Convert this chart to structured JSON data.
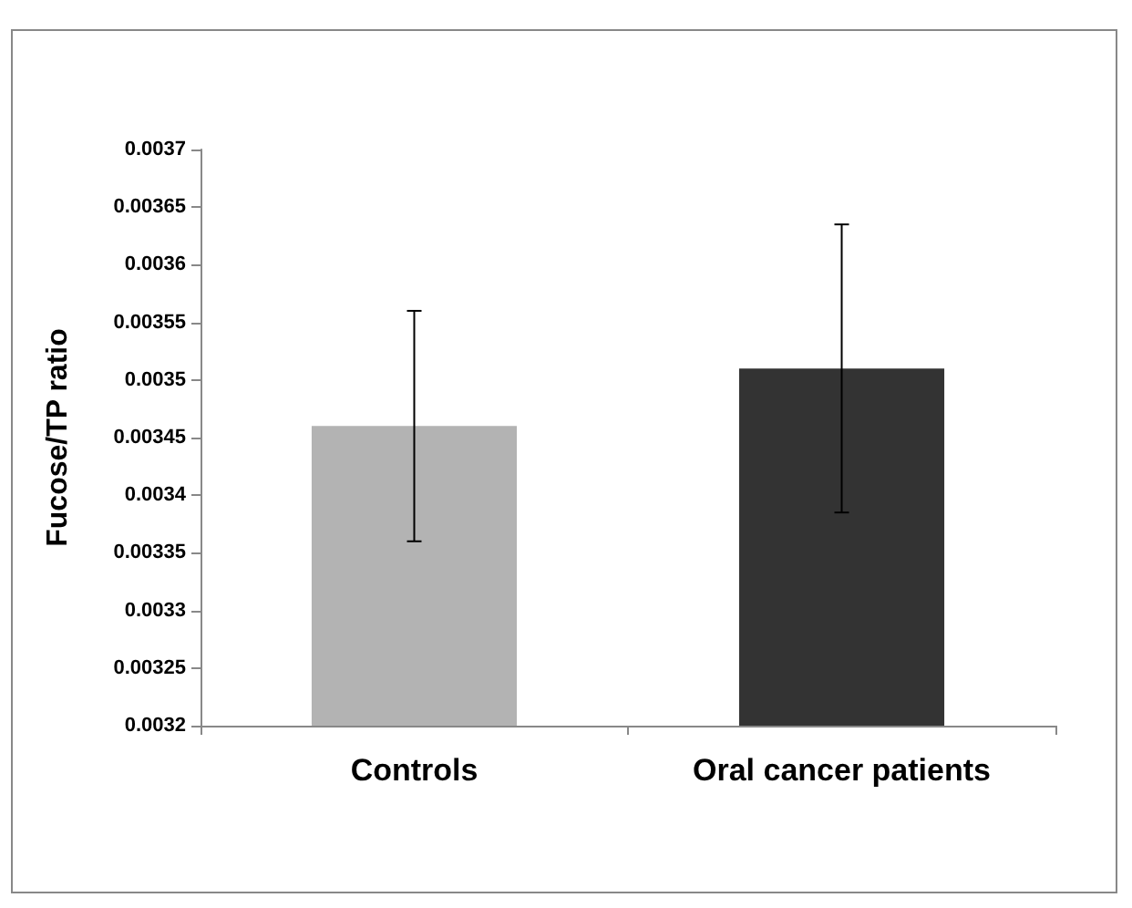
{
  "chart_data": {
    "type": "bar",
    "ylabel": "Fucose/TP ratio",
    "categories": [
      "Controls",
      "Oral cancer patients"
    ],
    "values": [
      0.00346,
      0.00351
    ],
    "colors": [
      "#b3b3b3",
      "#333333"
    ],
    "errors": [
      0.0001,
      0.000125
    ],
    "ylim": [
      0.0032,
      0.0037
    ],
    "yticks": [
      0.0032,
      0.00325,
      0.0033,
      0.00335,
      0.0034,
      0.00345,
      0.0035,
      0.00355,
      0.0036,
      0.00365,
      0.0037
    ],
    "grid": false
  }
}
